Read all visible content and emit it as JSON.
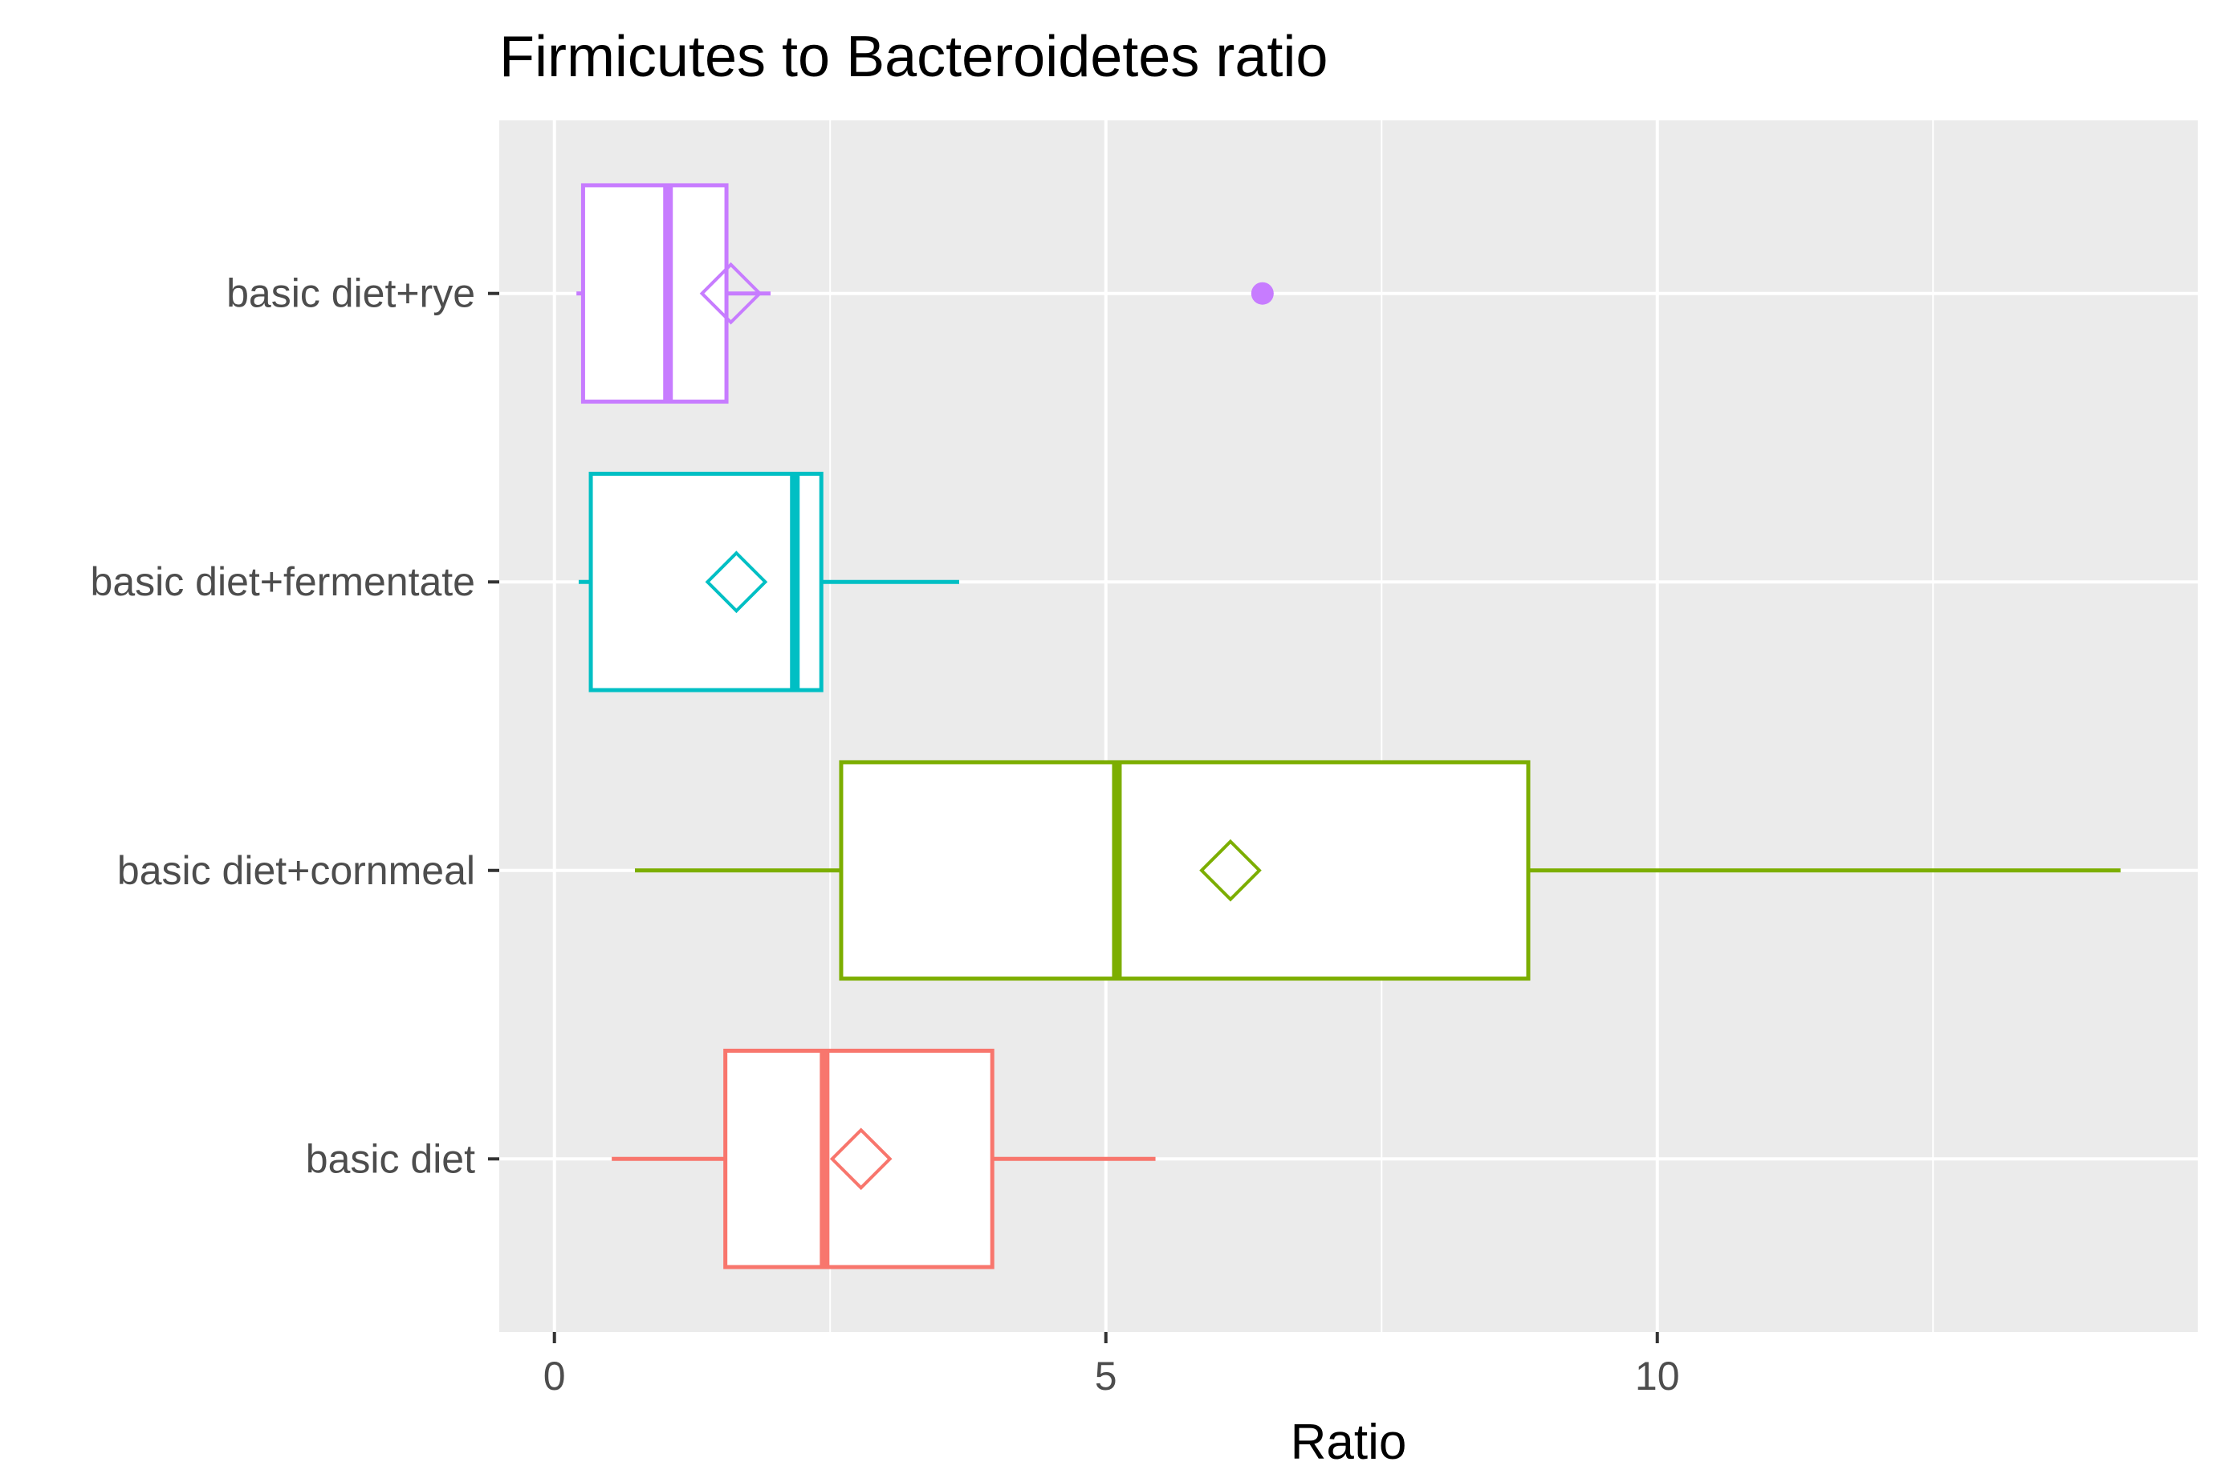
{
  "chart_data": {
    "type": "boxplot",
    "orientation": "horizontal",
    "title": "Firmicutes to Bacteroidetes ratio",
    "xlabel": "Ratio",
    "ylabel": "",
    "xlim": [
      -0.5,
      14.9
    ],
    "x_ticks": [
      0,
      5,
      10
    ],
    "x_tick_labels": [
      "0",
      "5",
      "10"
    ],
    "x_minor_gridlines": [
      2.5,
      7.5,
      12.5
    ],
    "grid": true,
    "background": "#ebebeb",
    "gridline_color": "#ffffff",
    "legend": "none",
    "categories": [
      "basic diet",
      "basic diet+cornmeal",
      "basic diet+fermentate",
      "basic diet+rye"
    ],
    "series": [
      {
        "category": "basic diet",
        "color": "#f8766d",
        "whisker_low": 0.52,
        "q1": 1.55,
        "median": 2.45,
        "q3": 3.97,
        "whisker_high": 5.45,
        "mean": 2.78,
        "outliers": []
      },
      {
        "category": "basic diet+cornmeal",
        "color": "#7cae00",
        "whisker_low": 0.73,
        "q1": 2.6,
        "median": 5.1,
        "q3": 8.83,
        "whisker_high": 14.2,
        "mean": 6.13,
        "outliers": []
      },
      {
        "category": "basic diet+fermentate",
        "color": "#00bfc4",
        "whisker_low": 0.22,
        "q1": 0.33,
        "median": 2.18,
        "q3": 2.42,
        "whisker_high": 3.67,
        "mean": 1.65,
        "outliers": []
      },
      {
        "category": "basic diet+rye",
        "color": "#c77cff",
        "whisker_low": 0.2,
        "q1": 0.26,
        "median": 1.03,
        "q3": 1.56,
        "whisker_high": 1.96,
        "mean": 1.6,
        "outliers": [
          6.42
        ]
      }
    ]
  }
}
